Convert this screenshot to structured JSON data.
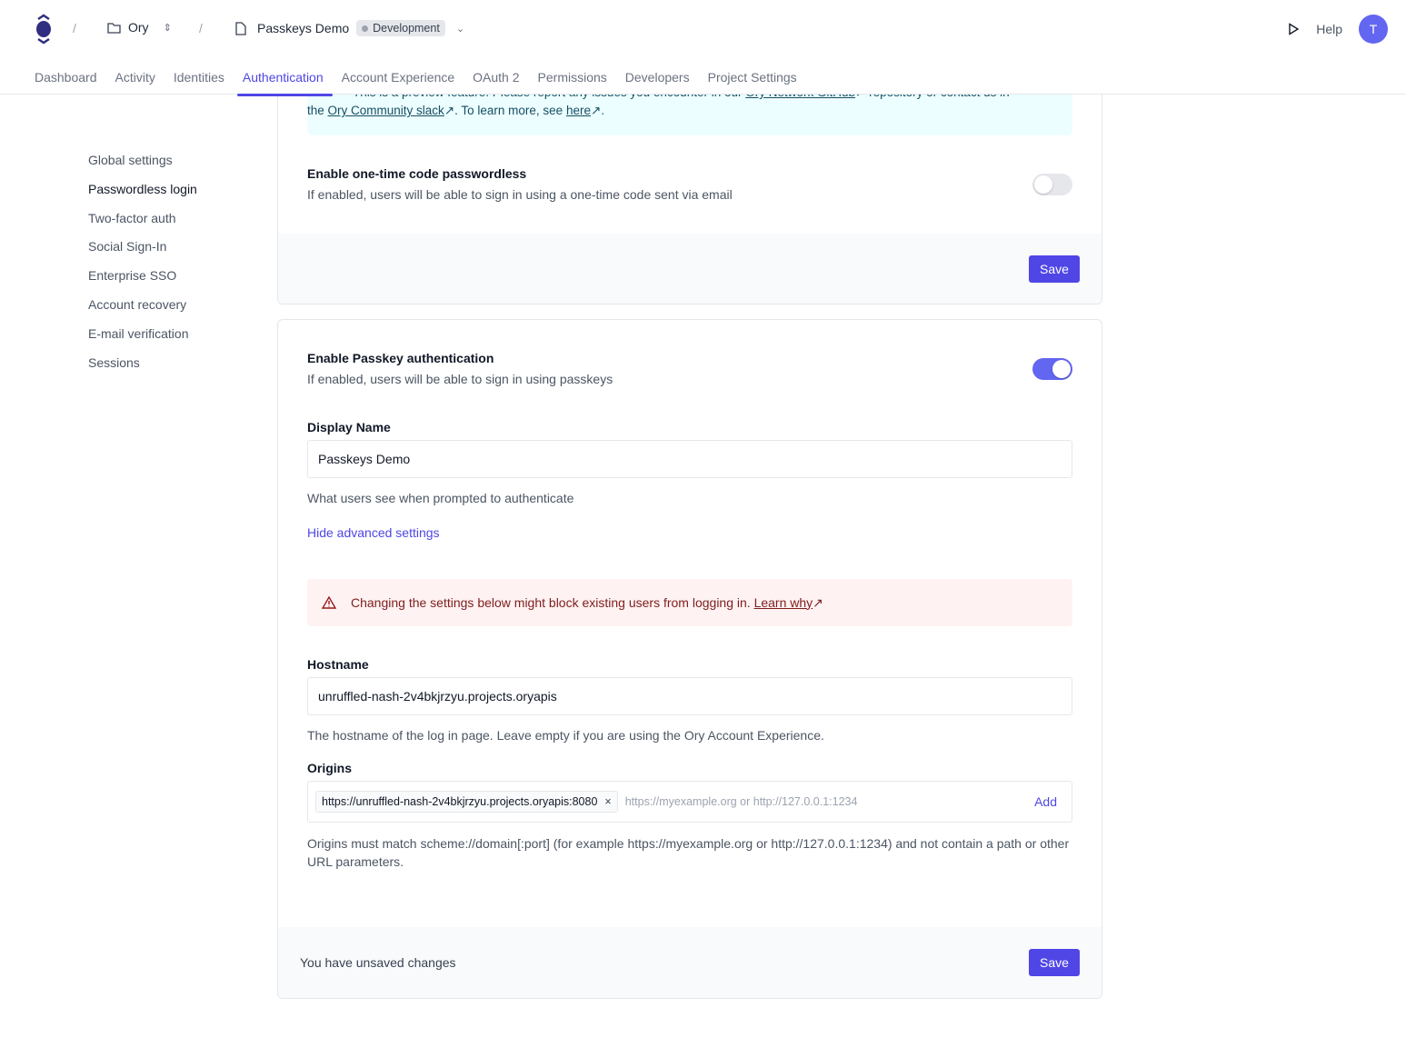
{
  "header": {
    "org": "Ory",
    "project": "Passkeys Demo",
    "env": "Development",
    "help": "Help",
    "avatar": "T"
  },
  "tabs": [
    "Dashboard",
    "Activity",
    "Identities",
    "Authentication",
    "Account Experience",
    "OAuth 2",
    "Permissions",
    "Developers",
    "Project Settings"
  ],
  "active_tab": "Authentication",
  "sidebar": [
    "Global settings",
    "Passwordless login",
    "Two-factor auth",
    "Social Sign-In",
    "Enterprise SSO",
    "Account recovery",
    "E-mail verification",
    "Sessions"
  ],
  "info": {
    "line1_pre": "This is a preview feature. Please report any issues you encounter in our ",
    "github": "Ory Network GitHub",
    "line1_post": " repository or contact us in",
    "line2_pre": "the ",
    "slack": "Ory Community slack",
    "mid": ". To learn more, see ",
    "here": "here",
    "end": "."
  },
  "otp": {
    "title": "Enable one-time code passwordless",
    "desc": "If enabled, users will be able to sign in using a one-time code sent via email",
    "enabled": false,
    "save": "Save"
  },
  "passkey": {
    "title": "Enable Passkey authentication",
    "desc": "If enabled, users will be able to sign in using passkeys",
    "enabled": true,
    "display_name_label": "Display Name",
    "display_name": "Passkeys Demo",
    "display_name_help": "What users see when prompted to authenticate",
    "advanced_link": "Hide advanced settings",
    "warning": "Changing the settings below might block existing users from logging in.",
    "learn_why": "Learn why",
    "hostname_label": "Hostname",
    "hostname": "unruffled-nash-2v4bkjrzyu.projects.oryapis",
    "hostname_help": "The hostname of the log in page. Leave empty if you are using the Ory Account Experience.",
    "origins_label": "Origins",
    "origins": [
      "https://unruffled-nash-2v4bkjrzyu.projects.oryapis:8080"
    ],
    "origins_placeholder": "https://myexample.org or http://127.0.0.1:1234",
    "add": "Add",
    "origins_help": "Origins must match scheme://domain[:port] (for example https://myexample.org or http://127.0.0.1:1234) and not contain a path or other URL parameters.",
    "unsaved": "You have unsaved changes",
    "save": "Save"
  },
  "colors": {
    "accent": "#4f46e5",
    "toggle_on": "#6366f1",
    "info_bg": "#ecfeff",
    "warn_bg": "#fef2f2"
  }
}
